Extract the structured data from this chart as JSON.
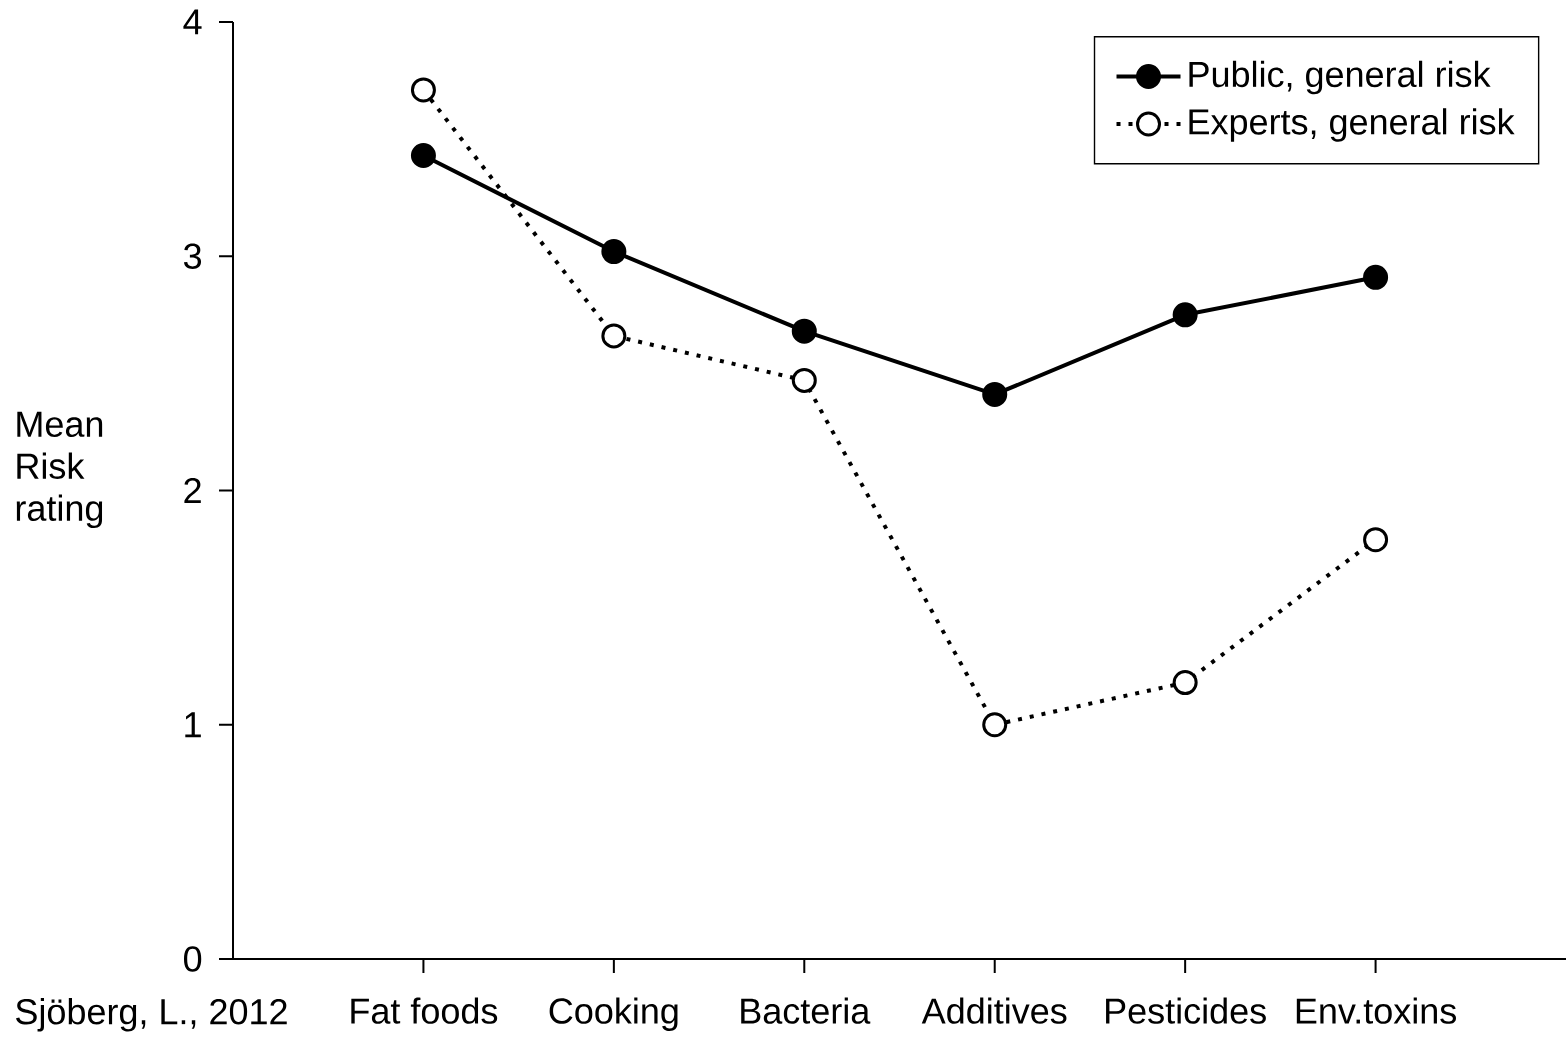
{
  "chart_data": {
    "type": "line",
    "categories": [
      "Fat foods",
      "Cooking",
      "Bacteria",
      "Additives",
      "Pesticides",
      "Env.toxins"
    ],
    "ylabel": "Mean Risk rating",
    "ylim": [
      0,
      4
    ],
    "yticks": [
      0,
      1,
      2,
      3,
      4
    ],
    "series": [
      {
        "name": "Public, general risk",
        "color": "#000000",
        "line_style": "solid",
        "marker": "circle",
        "values": [
          3.43,
          3.02,
          2.68,
          2.41,
          2.75,
          2.91
        ]
      },
      {
        "name": "Experts, general risk",
        "color": "#000000",
        "line_style": "dotted",
        "marker": "circle",
        "values": [
          3.71,
          2.66,
          2.47,
          1.0,
          1.18,
          1.79
        ]
      }
    ],
    "legend": "top right",
    "grid": false,
    "annotations": [
      "Sjöberg, L., 2012"
    ]
  }
}
